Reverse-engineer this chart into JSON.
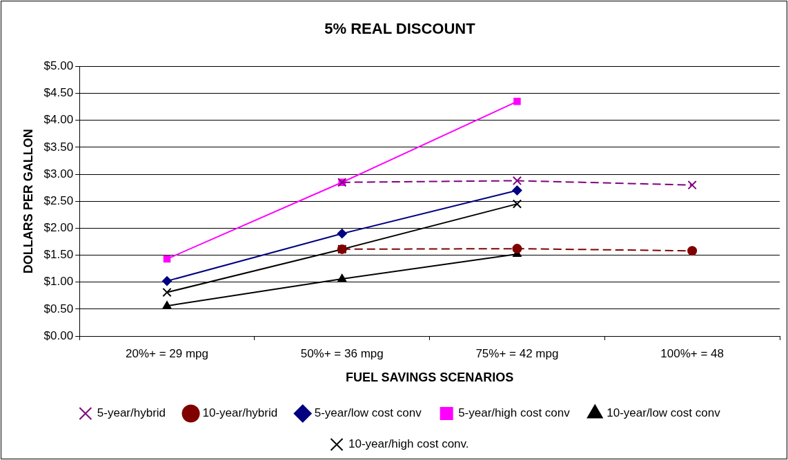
{
  "chart_data": {
    "type": "line",
    "title": "5% REAL DISCOUNT",
    "xlabel": "FUEL SAVINGS SCENARIOS",
    "ylabel": "DOLLARS PER GALLON",
    "categories": [
      "20%+ = 29 mpg",
      "50%+ = 36 mpg",
      "75%+ = 42 mpg",
      "100%+ = 48"
    ],
    "series": [
      {
        "name": "5-year/low cost conv",
        "color": "#000080",
        "marker": "diamond",
        "line_style": "solid",
        "values": [
          1.02,
          1.9,
          2.7,
          null
        ]
      },
      {
        "name": "5-year/high cost conv",
        "color": "#ff00ff",
        "marker": "square",
        "line_style": "solid",
        "values": [
          1.43,
          2.85,
          4.35,
          null
        ]
      },
      {
        "name": "5-year/hybrid",
        "color": "#800080",
        "marker": "cross",
        "line_style": "dashed",
        "values": [
          null,
          2.85,
          2.88,
          2.8
        ]
      },
      {
        "name": "10-year/low cost conv",
        "color": "#000000",
        "marker": "triangle",
        "line_style": "solid",
        "values": [
          0.56,
          1.06,
          1.52,
          null
        ]
      },
      {
        "name": "10-year/high cost conv.",
        "color": "#000000",
        "marker": "cross",
        "line_style": "solid",
        "values": [
          0.81,
          1.61,
          2.45,
          null
        ]
      },
      {
        "name": "10-year/hybrid",
        "color": "#800000",
        "marker": "circle",
        "line_style": "dashed",
        "values": [
          null,
          1.61,
          1.62,
          1.58
        ]
      }
    ],
    "ylim": [
      0,
      5
    ],
    "yticks": [
      {
        "value": 0,
        "label": "$0.00"
      },
      {
        "value": 0.5,
        "label": "$0.50"
      },
      {
        "value": 1,
        "label": "$1.00"
      },
      {
        "value": 1.5,
        "label": "$1.50"
      },
      {
        "value": 2,
        "label": "$2.00"
      },
      {
        "value": 2.5,
        "label": "$2.50"
      },
      {
        "value": 3,
        "label": "$3.00"
      },
      {
        "value": 3.5,
        "label": "$3.50"
      },
      {
        "value": 4,
        "label": "$4.00"
      },
      {
        "value": 4.5,
        "label": "$4.50"
      },
      {
        "value": 5,
        "label": "$5.00"
      }
    ],
    "grid": "y",
    "legend": "bottom"
  }
}
